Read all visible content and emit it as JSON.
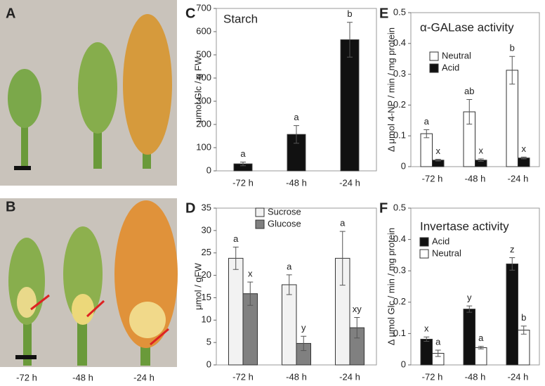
{
  "photo_panels": [
    {
      "label": "A"
    },
    {
      "label": "B",
      "stage_labels": [
        "-72 h",
        "-48 h",
        "-24 h"
      ]
    }
  ],
  "chart_data": [
    {
      "type": "bar",
      "panel_label": "C",
      "title": "Starch",
      "y_label": "μmol Glc / g FW",
      "categories": [
        "-72 h",
        "-48 h",
        "-24 h"
      ],
      "values": [
        30,
        157,
        565
      ],
      "errors": [
        8,
        38,
        75
      ],
      "letters": [
        "a",
        "a",
        "b"
      ],
      "color": "#111111",
      "ylim": [
        0,
        700
      ],
      "yticks": [
        0,
        100,
        200,
        300,
        400,
        500,
        600,
        700
      ]
    },
    {
      "type": "bar",
      "panel_label": "D",
      "y_label": "μmol / gFW",
      "categories": [
        "-72 h",
        "-48 h",
        "-24 h"
      ],
      "series": [
        {
          "name": "Sucrose",
          "color": "#f2f2f2",
          "values": [
            23.8,
            17.9,
            23.8
          ],
          "errors": [
            2.5,
            2.2,
            6.0
          ],
          "letters": [
            "a",
            "a",
            "a"
          ]
        },
        {
          "name": "Glucose",
          "color": "#808080",
          "values": [
            15.9,
            4.8,
            8.3
          ],
          "errors": [
            2.6,
            1.6,
            2.3
          ],
          "letters": [
            "x",
            "y",
            "xy"
          ]
        }
      ],
      "ylim": [
        0,
        35
      ],
      "yticks": [
        0,
        5,
        10,
        15,
        20,
        25,
        30,
        35
      ]
    },
    {
      "type": "bar",
      "panel_label": "E",
      "title": "α-GALase activity",
      "y_label": "Δ μmol 4-NP / min / mg protein",
      "categories": [
        "-72 h",
        "-48 h",
        "-24 h"
      ],
      "series": [
        {
          "name": "Neutral",
          "color": "#ffffff",
          "values": [
            0.107,
            0.178,
            0.313
          ],
          "errors": [
            0.013,
            0.04,
            0.045
          ],
          "letters": [
            "a",
            "ab",
            "b"
          ]
        },
        {
          "name": "Acid",
          "color": "#111111",
          "values": [
            0.021,
            0.021,
            0.028
          ],
          "errors": [
            0.003,
            0.004,
            0.003
          ],
          "letters": [
            "x",
            "x",
            "x"
          ]
        }
      ],
      "ylim": [
        0,
        0.5
      ],
      "yticks": [
        0,
        0.1,
        0.2,
        0.3,
        0.4,
        0.5
      ]
    },
    {
      "type": "bar",
      "panel_label": "F",
      "title": "Invertase activity",
      "y_label": "Δ μmol Glc / min / mg protein",
      "categories": [
        "-72 h",
        "-48 h",
        "-24 h"
      ],
      "series": [
        {
          "name": "Acid",
          "color": "#111111",
          "values": [
            0.082,
            0.178,
            0.322
          ],
          "errors": [
            0.007,
            0.01,
            0.02
          ],
          "letters": [
            "x",
            "y",
            "z"
          ]
        },
        {
          "name": "Neutral",
          "color": "#ffffff",
          "values": [
            0.037,
            0.055,
            0.111
          ],
          "errors": [
            0.01,
            0.004,
            0.013
          ],
          "letters": [
            "a",
            "a",
            "b"
          ]
        }
      ],
      "ylim": [
        0,
        0.5
      ],
      "yticks": [
        0,
        0.1,
        0.2,
        0.3,
        0.4,
        0.5
      ]
    }
  ]
}
